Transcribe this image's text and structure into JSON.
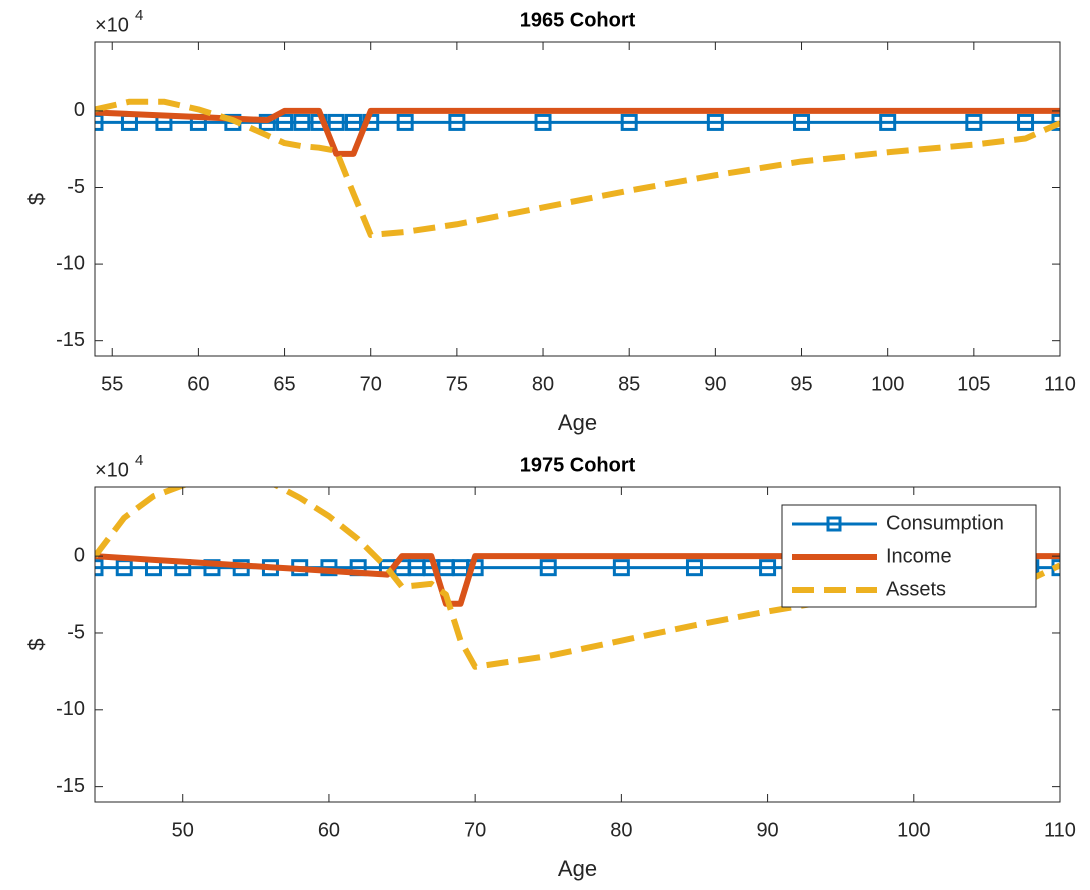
{
  "chart_data": [
    {
      "type": "line",
      "title": "1965 Cohort",
      "xlabel": "Age",
      "ylabel": "$",
      "y_multiplier": "×10",
      "y_multiplier_exponent": "4",
      "x": [
        54,
        56,
        58,
        60,
        62,
        64,
        65,
        66,
        67,
        68,
        69,
        70,
        72,
        75,
        80,
        85,
        90,
        95,
        100,
        105,
        108,
        110
      ],
      "xlim": [
        54,
        110
      ],
      "ylim": [
        -16,
        4.5
      ],
      "xticks": [
        55,
        60,
        65,
        70,
        75,
        80,
        85,
        90,
        95,
        100,
        105,
        110
      ],
      "yticks": [
        -15,
        -10,
        -5,
        0
      ],
      "legend": "none",
      "series": [
        {
          "name": "Consumption",
          "color": "#0072bd",
          "line_style": "solid",
          "marker": "square",
          "values": [
            -0.75,
            -0.75,
            -0.75,
            -0.75,
            -0.75,
            -0.75,
            -0.75,
            -0.75,
            -0.75,
            -0.75,
            -0.75,
            -0.75,
            -0.75,
            -0.75,
            -0.75,
            -0.75,
            -0.75,
            -0.75,
            -0.75,
            -0.75,
            -0.75,
            -0.75
          ]
        },
        {
          "name": "Income",
          "color": "#d95319",
          "line_style": "solid",
          "marker": "none",
          "values": [
            -0.1,
            -0.2,
            -0.3,
            -0.4,
            -0.5,
            -0.6,
            0,
            0,
            0,
            -2.8,
            -2.8,
            0,
            0,
            0,
            0,
            0,
            0,
            0,
            0,
            0,
            0,
            0
          ]
        },
        {
          "name": "Assets",
          "color": "#edb120",
          "line_style": "dashed",
          "marker": "none",
          "values": [
            0.1,
            0.6,
            0.6,
            0.1,
            -0.6,
            -1.6,
            -2.1,
            -2.3,
            -2.4,
            -2.6,
            -5.4,
            -8.1,
            -7.9,
            -7.4,
            -6.3,
            -5.2,
            -4.2,
            -3.3,
            -2.7,
            -2.2,
            -1.8,
            -0.8
          ]
        }
      ]
    },
    {
      "type": "line",
      "title": "1975 Cohort",
      "xlabel": "Age",
      "ylabel": "$",
      "y_multiplier": "×10",
      "y_multiplier_exponent": "4",
      "x": [
        44,
        46,
        48,
        50,
        52,
        54,
        56,
        58,
        60,
        62,
        64,
        65,
        66,
        67,
        68,
        69,
        70,
        75,
        80,
        85,
        90,
        95,
        100,
        105,
        108,
        110
      ],
      "xlim": [
        44,
        110
      ],
      "ylim": [
        -16,
        4.5
      ],
      "xticks": [
        50,
        60,
        70,
        80,
        90,
        100,
        110
      ],
      "yticks": [
        -15,
        -10,
        -5,
        0
      ],
      "legend": "northeast",
      "series": [
        {
          "name": "Consumption",
          "color": "#0072bd",
          "line_style": "solid",
          "marker": "square",
          "values": [
            -0.75,
            -0.75,
            -0.75,
            -0.75,
            -0.75,
            -0.75,
            -0.75,
            -0.75,
            -0.75,
            -0.75,
            -0.75,
            -0.75,
            -0.75,
            -0.75,
            -0.75,
            -0.75,
            -0.75,
            -0.75,
            -0.75,
            -0.75,
            -0.75,
            -0.75,
            -0.75,
            -0.75,
            -0.75,
            -0.75
          ]
        },
        {
          "name": "Income",
          "color": "#d95319",
          "line_style": "solid",
          "marker": "none",
          "values": [
            0,
            -0.12,
            -0.24,
            -0.36,
            -0.48,
            -0.6,
            -0.72,
            -0.84,
            -0.96,
            -1.08,
            -1.2,
            0,
            0,
            0,
            -3.1,
            -3.1,
            0,
            0,
            0,
            0,
            0,
            0,
            0,
            0,
            0,
            0
          ]
        },
        {
          "name": "Assets",
          "color": "#edb120",
          "line_style": "dashed",
          "marker": "none",
          "values": [
            0,
            2.5,
            3.9,
            4.6,
            5.0,
            5.2,
            4.8,
            3.8,
            2.6,
            1.1,
            -0.8,
            -2.0,
            -1.9,
            -1.8,
            -2.5,
            -5.5,
            -7.2,
            -6.5,
            -5.5,
            -4.5,
            -3.6,
            -2.8,
            -2.2,
            -1.8,
            -1.5,
            -0.6
          ]
        }
      ]
    }
  ]
}
